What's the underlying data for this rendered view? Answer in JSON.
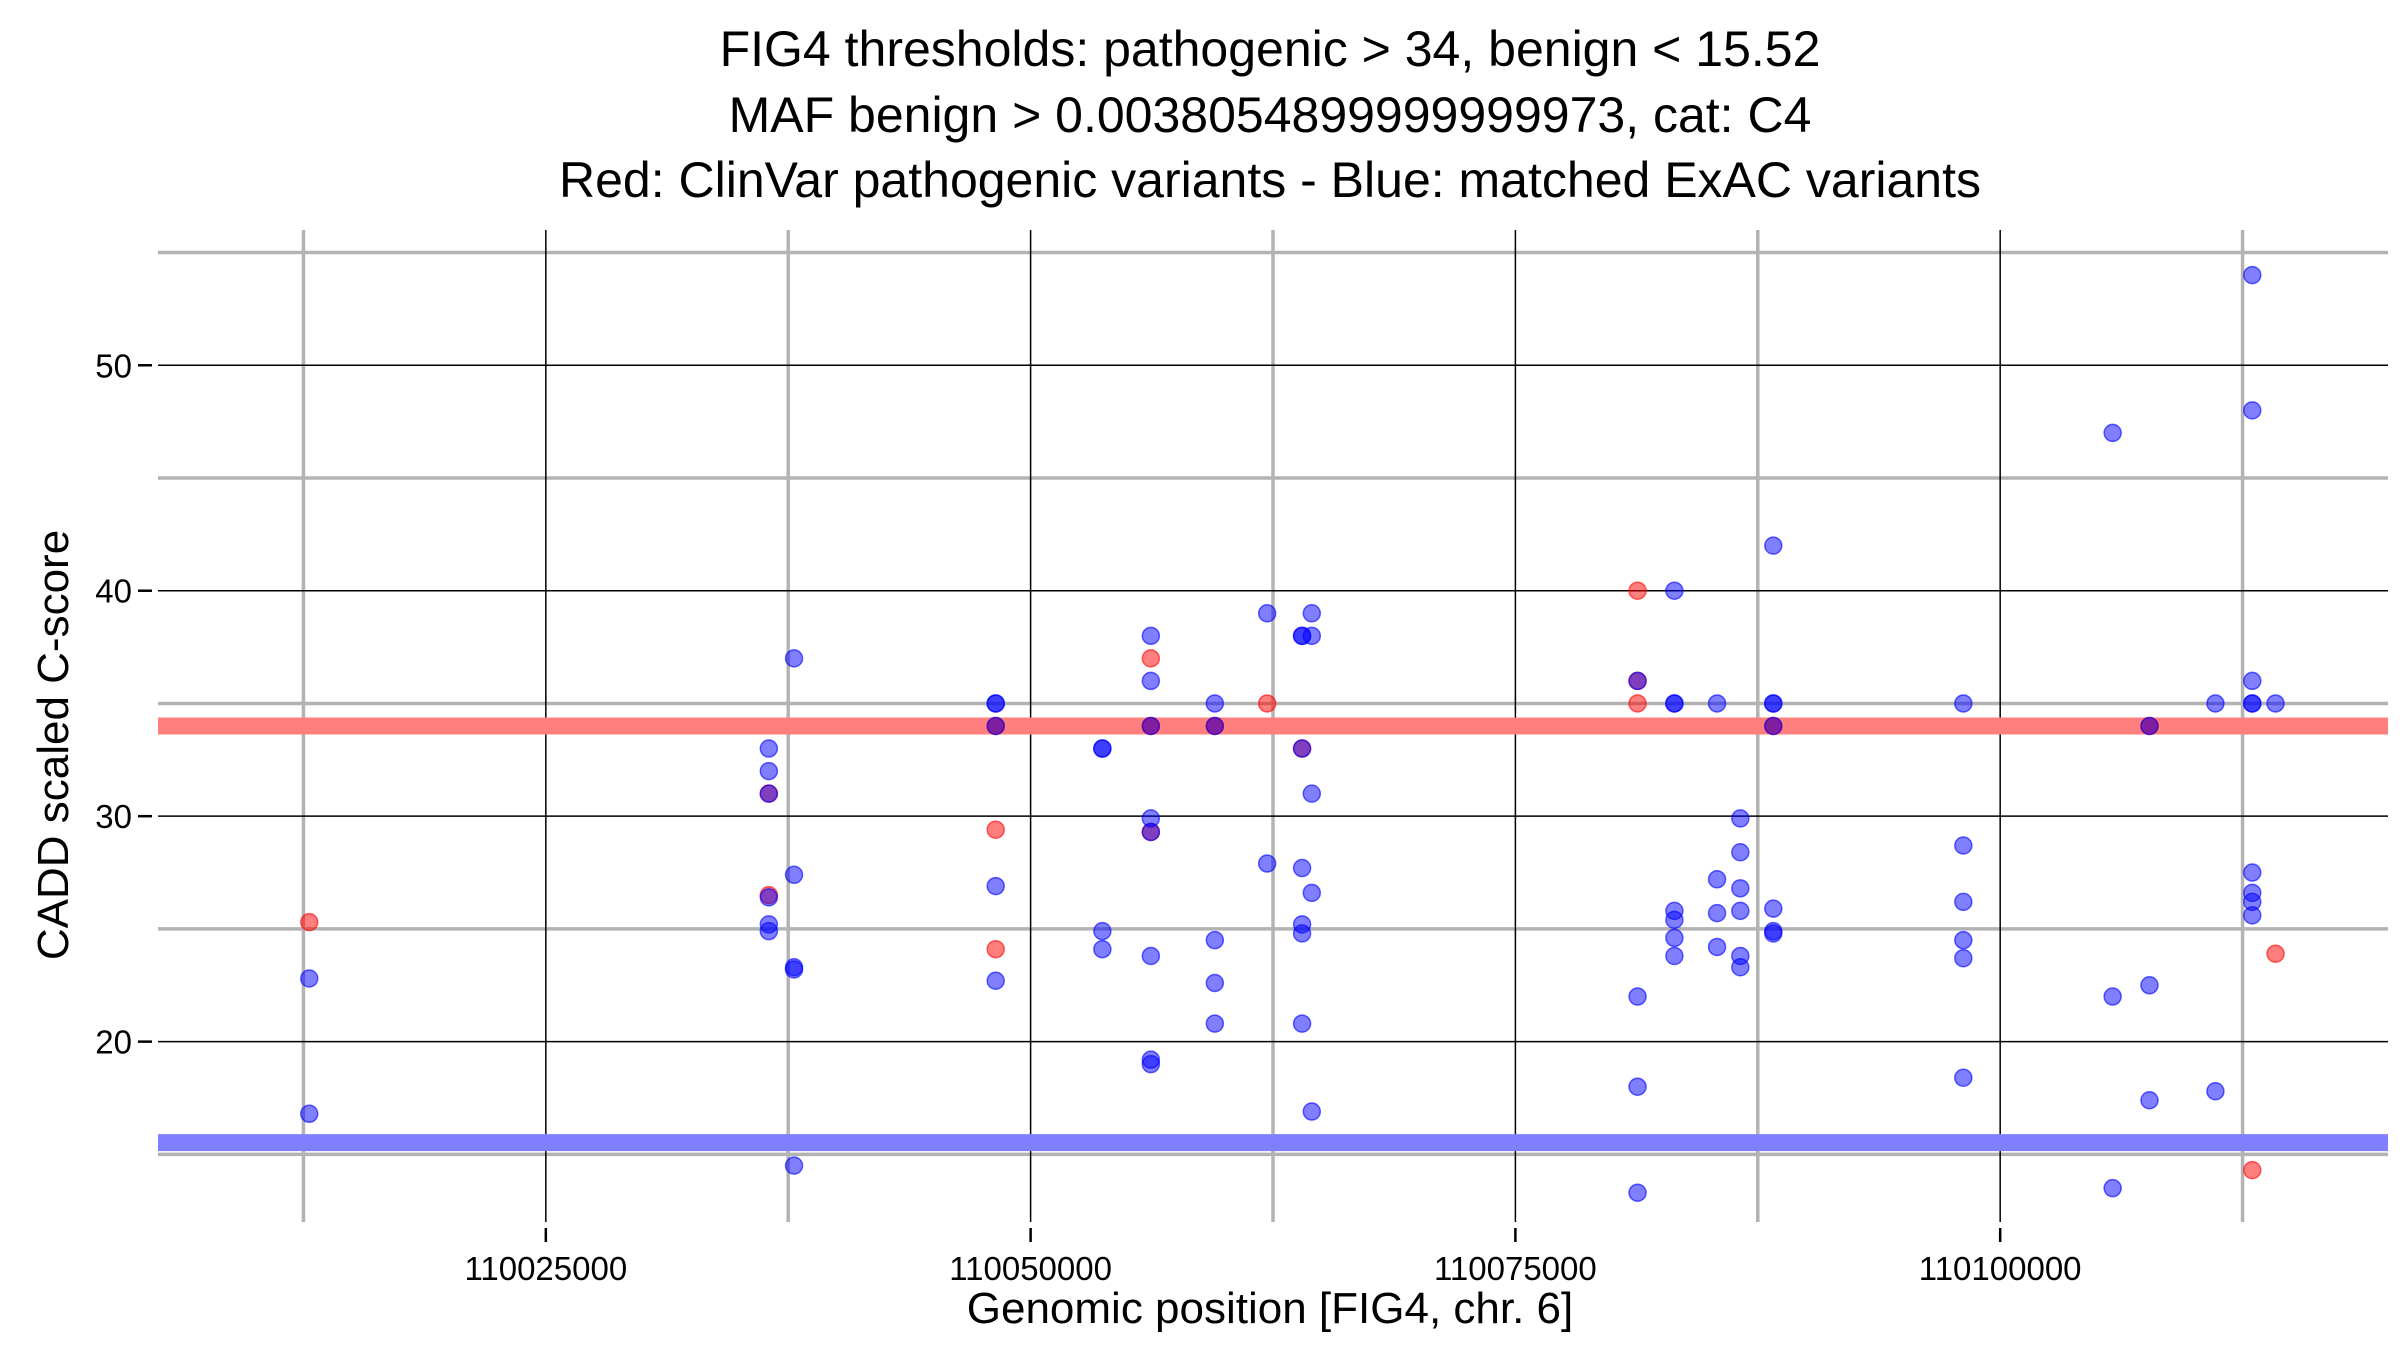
{
  "chart_data": {
    "type": "scatter",
    "title": [
      "FIG4 thresholds: pathogenic > 34, benign < 15.52",
      "MAF benign > 0.0038054899999999973, cat: C4",
      "Red: ClinVar pathogenic variants - Blue: matched ExAC variants"
    ],
    "xlabel": "Genomic position [FIG4, chr. 6]",
    "ylabel": "CADD scaled C-score",
    "xlim": [
      110005000,
      110120000
    ],
    "ylim": [
      12,
      56
    ],
    "x_ticks": [
      110025000,
      110050000,
      110075000,
      110100000
    ],
    "x_tick_labels": [
      "110025000",
      "110050000",
      "110075000",
      "110100000"
    ],
    "y_ticks": [
      20,
      30,
      40,
      50
    ],
    "y_tick_labels": [
      "20",
      "30",
      "40",
      "50"
    ],
    "x_minor_gridlines": [
      110012500,
      110037500,
      110062500,
      110087500,
      110112500
    ],
    "y_minor_gridlines": [
      15,
      25,
      35,
      45,
      55
    ],
    "grid": true,
    "thresholds": [
      {
        "label": "pathogenic",
        "value": 34,
        "color": "#ff7f7f"
      },
      {
        "label": "benign",
        "value": 15.52,
        "color": "#7f7fff"
      }
    ],
    "series": [
      {
        "color": "#ff0000",
        "points": [
          [
            110012800,
            25.3
          ],
          [
            110036500,
            31.0
          ],
          [
            110036500,
            26.5
          ],
          [
            110048200,
            34.0
          ],
          [
            110048200,
            29.4
          ],
          [
            110048200,
            24.1
          ],
          [
            110056200,
            37.0
          ],
          [
            110056200,
            34.0
          ],
          [
            110056200,
            29.3
          ],
          [
            110059500,
            34.0
          ],
          [
            110062200,
            35.0
          ],
          [
            110064000,
            33.0
          ],
          [
            110081300,
            40.0
          ],
          [
            110081300,
            36.0
          ],
          [
            110081300,
            35.0
          ],
          [
            110088300,
            34.0
          ],
          [
            110107700,
            34.0
          ],
          [
            110113000,
            14.3
          ],
          [
            110114200,
            23.9
          ]
        ]
      },
      {
        "color": "#0000ff",
        "points": [
          [
            110012800,
            22.8
          ],
          [
            110012800,
            16.8
          ],
          [
            110036500,
            33.0
          ],
          [
            110036500,
            32.0
          ],
          [
            110036500,
            31.0
          ],
          [
            110036500,
            26.4
          ],
          [
            110036500,
            25.2
          ],
          [
            110036500,
            24.9
          ],
          [
            110037800,
            37.0
          ],
          [
            110037800,
            27.4
          ],
          [
            110037800,
            23.3
          ],
          [
            110037800,
            23.2
          ],
          [
            110037800,
            14.5
          ],
          [
            110048200,
            35.0
          ],
          [
            110048200,
            35.0
          ],
          [
            110048200,
            34.0
          ],
          [
            110048200,
            26.9
          ],
          [
            110048200,
            22.7
          ],
          [
            110053700,
            33.0
          ],
          [
            110053700,
            33.0
          ],
          [
            110053700,
            24.9
          ],
          [
            110053700,
            24.1
          ],
          [
            110056200,
            38.0
          ],
          [
            110056200,
            36.0
          ],
          [
            110056200,
            34.0
          ],
          [
            110056200,
            29.9
          ],
          [
            110056200,
            29.3
          ],
          [
            110056200,
            23.8
          ],
          [
            110056200,
            19.2
          ],
          [
            110056200,
            19.0
          ],
          [
            110059500,
            35.0
          ],
          [
            110059500,
            34.0
          ],
          [
            110059500,
            24.5
          ],
          [
            110059500,
            22.6
          ],
          [
            110059500,
            20.8
          ],
          [
            110062200,
            39.0
          ],
          [
            110062200,
            27.9
          ],
          [
            110064000,
            38.0
          ],
          [
            110064000,
            38.0
          ],
          [
            110064000,
            33.0
          ],
          [
            110064000,
            27.7
          ],
          [
            110064000,
            25.2
          ],
          [
            110064000,
            24.8
          ],
          [
            110064000,
            20.8
          ],
          [
            110064500,
            39.0
          ],
          [
            110064500,
            38.0
          ],
          [
            110064500,
            31.0
          ],
          [
            110064500,
            26.6
          ],
          [
            110064500,
            16.9
          ],
          [
            110081300,
            36.0
          ],
          [
            110081300,
            22.0
          ],
          [
            110081300,
            18.0
          ],
          [
            110081300,
            13.3
          ],
          [
            110083200,
            40.0
          ],
          [
            110083200,
            35.0
          ],
          [
            110083200,
            35.0
          ],
          [
            110083200,
            25.8
          ],
          [
            110083200,
            25.4
          ],
          [
            110083200,
            24.6
          ],
          [
            110083200,
            23.8
          ],
          [
            110085400,
            35.0
          ],
          [
            110085400,
            27.2
          ],
          [
            110085400,
            25.7
          ],
          [
            110085400,
            24.2
          ],
          [
            110086600,
            29.9
          ],
          [
            110086600,
            28.4
          ],
          [
            110086600,
            26.8
          ],
          [
            110086600,
            25.8
          ],
          [
            110086600,
            23.8
          ],
          [
            110086600,
            23.3
          ],
          [
            110088300,
            42.0
          ],
          [
            110088300,
            35.0
          ],
          [
            110088300,
            35.0
          ],
          [
            110088300,
            34.0
          ],
          [
            110088300,
            25.9
          ],
          [
            110088300,
            24.9
          ],
          [
            110088300,
            24.8
          ],
          [
            110098100,
            35.0
          ],
          [
            110098100,
            28.7
          ],
          [
            110098100,
            26.2
          ],
          [
            110098100,
            24.5
          ],
          [
            110098100,
            23.7
          ],
          [
            110098100,
            18.4
          ],
          [
            110105800,
            47.0
          ],
          [
            110105800,
            22.0
          ],
          [
            110105800,
            13.5
          ],
          [
            110107700,
            34.0
          ],
          [
            110107700,
            22.5
          ],
          [
            110107700,
            17.4
          ],
          [
            110111100,
            35.0
          ],
          [
            110111100,
            17.8
          ],
          [
            110113000,
            54.0
          ],
          [
            110113000,
            48.0
          ],
          [
            110113000,
            36.0
          ],
          [
            110113000,
            35.0
          ],
          [
            110113000,
            35.0
          ],
          [
            110113000,
            27.5
          ],
          [
            110113000,
            26.6
          ],
          [
            110113000,
            26.2
          ],
          [
            110113000,
            25.6
          ],
          [
            110114200,
            35.0
          ]
        ]
      }
    ]
  }
}
